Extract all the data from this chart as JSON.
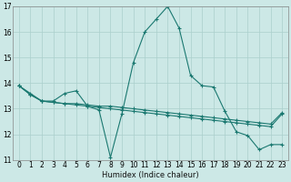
{
  "xlabel": "Humidex (Indice chaleur)",
  "bg_color": "#cce8e6",
  "grid_color": "#aacfcc",
  "line_color": "#1a7870",
  "xlim": [
    -0.5,
    23.5
  ],
  "ylim": [
    11,
    17
  ],
  "yticks": [
    11,
    12,
    13,
    14,
    15,
    16,
    17
  ],
  "xticks": [
    0,
    1,
    2,
    3,
    4,
    5,
    6,
    7,
    8,
    9,
    10,
    11,
    12,
    13,
    14,
    15,
    16,
    17,
    18,
    19,
    20,
    21,
    22,
    23
  ],
  "series1_x": [
    0,
    1,
    2,
    3,
    4,
    5,
    6,
    7,
    8,
    9,
    10,
    11,
    12,
    13,
    14,
    15,
    16,
    17,
    18,
    19,
    20,
    21,
    22,
    23
  ],
  "series1_y": [
    13.9,
    13.6,
    13.3,
    13.3,
    13.6,
    13.7,
    13.1,
    12.95,
    11.1,
    12.8,
    14.8,
    16.0,
    16.5,
    17.0,
    16.15,
    14.3,
    13.9,
    13.85,
    12.9,
    12.1,
    11.95,
    11.4,
    11.6,
    11.6
  ],
  "series2_x": [
    0,
    1,
    2,
    3,
    4,
    5,
    6,
    7,
    8,
    9,
    10,
    11,
    12,
    13,
    14,
    15,
    16,
    17,
    18,
    19,
    20,
    21,
    22,
    23
  ],
  "series2_y": [
    13.9,
    13.55,
    13.3,
    13.25,
    13.2,
    13.2,
    13.15,
    13.1,
    13.1,
    13.05,
    13.0,
    12.95,
    12.9,
    12.85,
    12.8,
    12.75,
    12.7,
    12.65,
    12.6,
    12.55,
    12.5,
    12.45,
    12.4,
    12.85
  ],
  "series3_x": [
    0,
    1,
    2,
    3,
    4,
    5,
    6,
    7,
    8,
    9,
    10,
    11,
    12,
    13,
    14,
    15,
    16,
    17,
    18,
    19,
    20,
    21,
    22,
    23
  ],
  "series3_y": [
    13.9,
    13.55,
    13.3,
    13.25,
    13.2,
    13.15,
    13.1,
    13.05,
    13.0,
    12.95,
    12.9,
    12.85,
    12.8,
    12.75,
    12.7,
    12.65,
    12.6,
    12.55,
    12.5,
    12.45,
    12.4,
    12.35,
    12.3,
    12.8
  ],
  "xlabel_fontsize": 6,
  "tick_fontsize": 5.5
}
